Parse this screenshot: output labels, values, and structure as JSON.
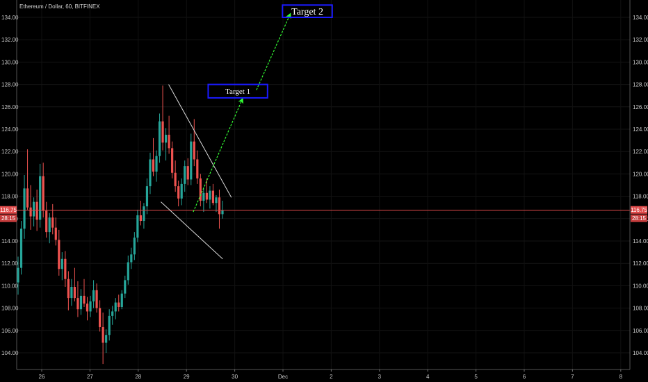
{
  "chart_data": {
    "type": "candlestick",
    "title": "Ethereum / Dollar, 60, BITFINEX",
    "symbol": "Ethereum / Dollar",
    "interval": "60",
    "exchange": "BITFINEX",
    "ylim": [
      102.5,
      135.5
    ],
    "y_ticks": [
      "104.00",
      "106.00",
      "108.00",
      "110.00",
      "112.00",
      "114.00",
      "116.00",
      "118.00",
      "120.00",
      "122.00",
      "124.00",
      "126.00",
      "128.00",
      "130.00",
      "132.00",
      "134.00"
    ],
    "x_ticks": [
      "26",
      "27",
      "28",
      "29",
      "30",
      "Dec",
      "2",
      "3",
      "4",
      "5",
      "6",
      "7",
      "8"
    ],
    "x_axis_days": 14,
    "current_price": "116.75",
    "countdown": "28:15",
    "colors": {
      "up": "#26a69a",
      "down": "#ef5350",
      "price_line": "#e04a4a",
      "trend": "#d9d9d9",
      "arrow": "#33ff33",
      "target_box": "#1a1aff",
      "text": "#c9c9c9"
    },
    "candles": [
      [
        110.3,
        112.6,
        109.2,
        111.6
      ],
      [
        111.6,
        115.8,
        111.0,
        115.1
      ],
      [
        115.1,
        119.9,
        114.2,
        118.7
      ],
      [
        118.7,
        122.2,
        116.8,
        117.0
      ],
      [
        117.0,
        119.0,
        115.0,
        116.2
      ],
      [
        116.2,
        117.9,
        115.3,
        117.5
      ],
      [
        117.5,
        118.6,
        114.9,
        115.9
      ],
      [
        115.9,
        120.9,
        115.2,
        119.8
      ],
      [
        119.8,
        121.0,
        116.1,
        116.7
      ],
      [
        116.7,
        117.5,
        114.3,
        114.8
      ],
      [
        114.8,
        116.5,
        113.8,
        116.1
      ],
      [
        116.1,
        117.3,
        114.6,
        115.2
      ],
      [
        115.2,
        116.1,
        113.6,
        114.1
      ],
      [
        114.1,
        115.0,
        110.9,
        111.5
      ],
      [
        111.5,
        113.0,
        110.5,
        112.4
      ],
      [
        112.4,
        113.1,
        109.9,
        110.6
      ],
      [
        110.6,
        111.3,
        107.8,
        108.9
      ],
      [
        108.9,
        110.6,
        108.2,
        109.9
      ],
      [
        109.9,
        111.6,
        108.6,
        108.9
      ],
      [
        108.9,
        110.4,
        107.2,
        107.9
      ],
      [
        107.9,
        109.7,
        107.4,
        109.1
      ],
      [
        109.1,
        110.6,
        108.1,
        108.4
      ],
      [
        108.4,
        109.0,
        106.9,
        107.7
      ],
      [
        107.7,
        109.1,
        107.2,
        108.6
      ],
      [
        108.6,
        110.5,
        108.0,
        109.6
      ],
      [
        109.6,
        110.2,
        107.6,
        108.0
      ],
      [
        108.0,
        108.7,
        105.9,
        106.3
      ],
      [
        106.3,
        107.6,
        103.0,
        104.9
      ],
      [
        104.9,
        106.1,
        104.0,
        105.6
      ],
      [
        105.6,
        107.9,
        105.1,
        107.3
      ],
      [
        107.3,
        108.2,
        106.5,
        107.7
      ],
      [
        107.7,
        108.9,
        107.0,
        108.5
      ],
      [
        108.5,
        109.2,
        107.7,
        108.1
      ],
      [
        108.1,
        109.6,
        107.9,
        109.3
      ],
      [
        109.3,
        110.9,
        108.9,
        110.5
      ],
      [
        110.5,
        112.7,
        110.1,
        112.1
      ],
      [
        112.1,
        113.4,
        111.5,
        112.8
      ],
      [
        112.8,
        114.8,
        112.3,
        114.3
      ],
      [
        114.3,
        116.8,
        113.9,
        116.3
      ],
      [
        116.3,
        117.6,
        115.4,
        115.8
      ],
      [
        115.8,
        117.4,
        115.1,
        117.1
      ],
      [
        117.1,
        119.6,
        116.4,
        118.9
      ],
      [
        118.9,
        121.9,
        118.2,
        121.3
      ],
      [
        121.3,
        123.2,
        119.8,
        120.2
      ],
      [
        120.2,
        122.1,
        119.3,
        121.6
      ],
      [
        121.6,
        125.4,
        121.0,
        124.7
      ],
      [
        124.7,
        127.9,
        122.1,
        122.8
      ],
      [
        122.8,
        124.1,
        121.2,
        123.5
      ],
      [
        123.5,
        125.2,
        121.8,
        122.3
      ],
      [
        122.3,
        122.9,
        119.6,
        120.1
      ],
      [
        120.1,
        121.2,
        118.4,
        118.9
      ],
      [
        118.9,
        119.4,
        117.1,
        117.8
      ],
      [
        117.8,
        119.6,
        117.2,
        119.1
      ],
      [
        119.1,
        121.2,
        118.4,
        120.7
      ],
      [
        120.7,
        121.4,
        119.0,
        119.5
      ],
      [
        119.5,
        123.6,
        119.0,
        122.9
      ],
      [
        122.9,
        124.9,
        120.7,
        121.3
      ],
      [
        121.3,
        122.1,
        119.1,
        119.6
      ],
      [
        119.6,
        120.0,
        117.1,
        117.6
      ],
      [
        117.6,
        118.8,
        116.6,
        118.3
      ],
      [
        118.3,
        119.6,
        117.4,
        117.7
      ],
      [
        117.7,
        118.9,
        116.9,
        118.5
      ],
      [
        118.5,
        119.1,
        117.2,
        117.4
      ],
      [
        117.4,
        118.1,
        116.6,
        117.9
      ],
      [
        117.9,
        118.6,
        115.1,
        116.4
      ],
      [
        116.4,
        117.6,
        116.0,
        116.75
      ]
    ],
    "trend_lines": [
      {
        "name": "upper-trend-line",
        "x": [
          2.63,
          3.93
        ],
        "y": [
          128.0,
          117.9
        ]
      },
      {
        "name": "lower-trend-line",
        "x": [
          2.47,
          3.75
        ],
        "y": [
          117.5,
          112.4
        ]
      }
    ],
    "arrows": [
      {
        "name": "arrow-to-target-1",
        "x": [
          3.14,
          4.16
        ],
        "y": [
          116.6,
          126.7
        ]
      },
      {
        "name": "arrow-to-target-2",
        "x": [
          4.45,
          5.15
        ],
        "y": [
          127.5,
          134.3
        ]
      }
    ],
    "targets": [
      {
        "name": "target-1-box",
        "label": "Target 1",
        "x": [
          3.45,
          4.68
        ],
        "y": [
          128.0,
          126.8
        ],
        "font_size": 11
      },
      {
        "name": "target-2-box",
        "label": "Target 2",
        "x": [
          4.99,
          6.02
        ],
        "y": [
          135.1,
          134.0
        ],
        "font_size": 14
      }
    ]
  }
}
